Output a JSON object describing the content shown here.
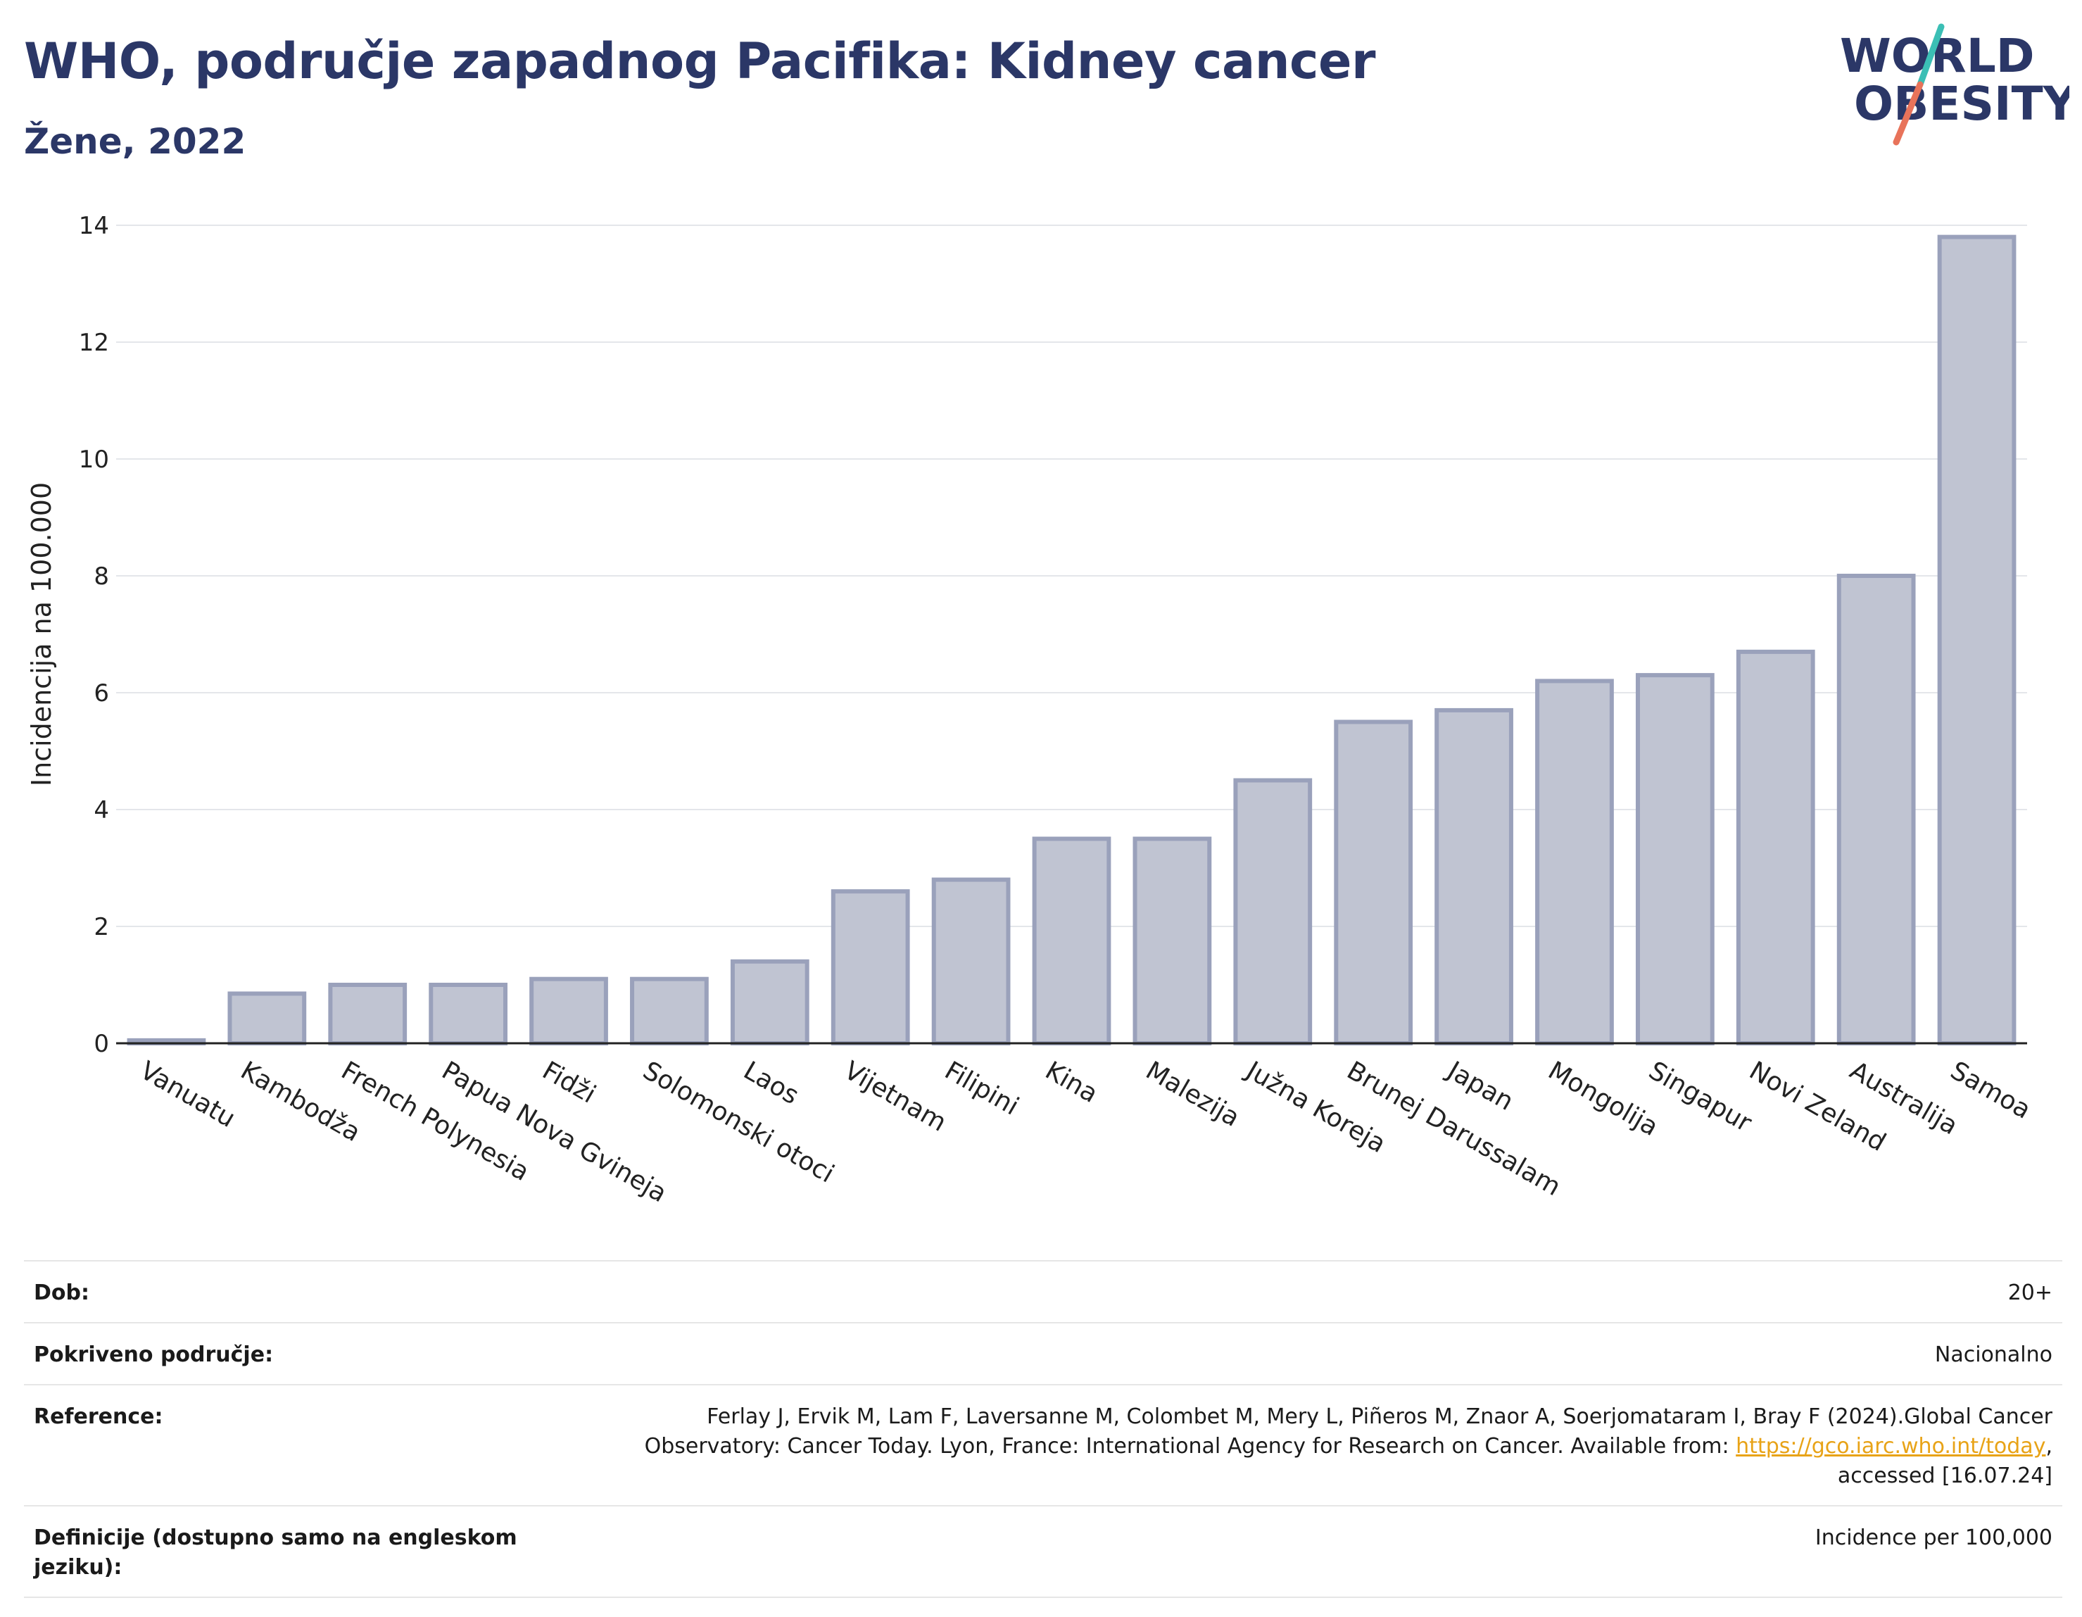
{
  "header": {
    "title": "WHO, područje zapadnog Pacifika: Kidney cancer",
    "subtitle": "Žene, 2022"
  },
  "logo": {
    "line1": "WORLD",
    "line2": "OBESITY",
    "colors": {
      "text": "#2b3767",
      "slash_teal": "#3bbfb5",
      "slash_red": "#e8735a"
    }
  },
  "chart_data": {
    "type": "bar",
    "ylabel": "Incidencija na 100.000",
    "xlabel": "",
    "ylim": [
      0,
      14
    ],
    "yticks": [
      0,
      2,
      4,
      6,
      8,
      10,
      12,
      14
    ],
    "grid": true,
    "bar_color": "#c0c4d2",
    "bar_border_color": "#9aa1bb",
    "categories": [
      "Vanuatu",
      "Kambodža",
      "French Polynesia",
      "Papua Nova Gvineja",
      "Fidži",
      "Solomonski otoci",
      "Laos",
      "Vijetnam",
      "Filipini",
      "Kina",
      "Malezija",
      "Južna Koreja",
      "Brunej Darussalam",
      "Japan",
      "Mongolija",
      "Singapur",
      "Novi Zeland",
      "Australija",
      "Samoa"
    ],
    "values": [
      0.05,
      0.85,
      1.0,
      1.0,
      1.1,
      1.1,
      1.4,
      2.6,
      2.8,
      3.5,
      3.5,
      4.5,
      5.5,
      5.7,
      6.2,
      6.3,
      6.7,
      8.0,
      13.8
    ]
  },
  "info": {
    "rows": [
      {
        "label": "Dob:",
        "value": "20+"
      },
      {
        "label": "Pokriveno područje:",
        "value": "Nacionalno"
      },
      {
        "label": "Reference:",
        "value_pre": "Ferlay J, Ervik M, Lam F, Laversanne M, Colombet M, Mery L, Piñeros M, Znaor A, Soerjomataram I, Bray F (2024).Global Cancer Observatory: Cancer Today. Lyon, France: International Agency for Research on Cancer. Available from: ",
        "link": "https://gco.iarc.who.int/today",
        "value_post": ", accessed [16.07.24]"
      },
      {
        "label": "Definicije (dostupno samo na engleskom jeziku):",
        "value": "Incidence per 100,000"
      }
    ]
  }
}
